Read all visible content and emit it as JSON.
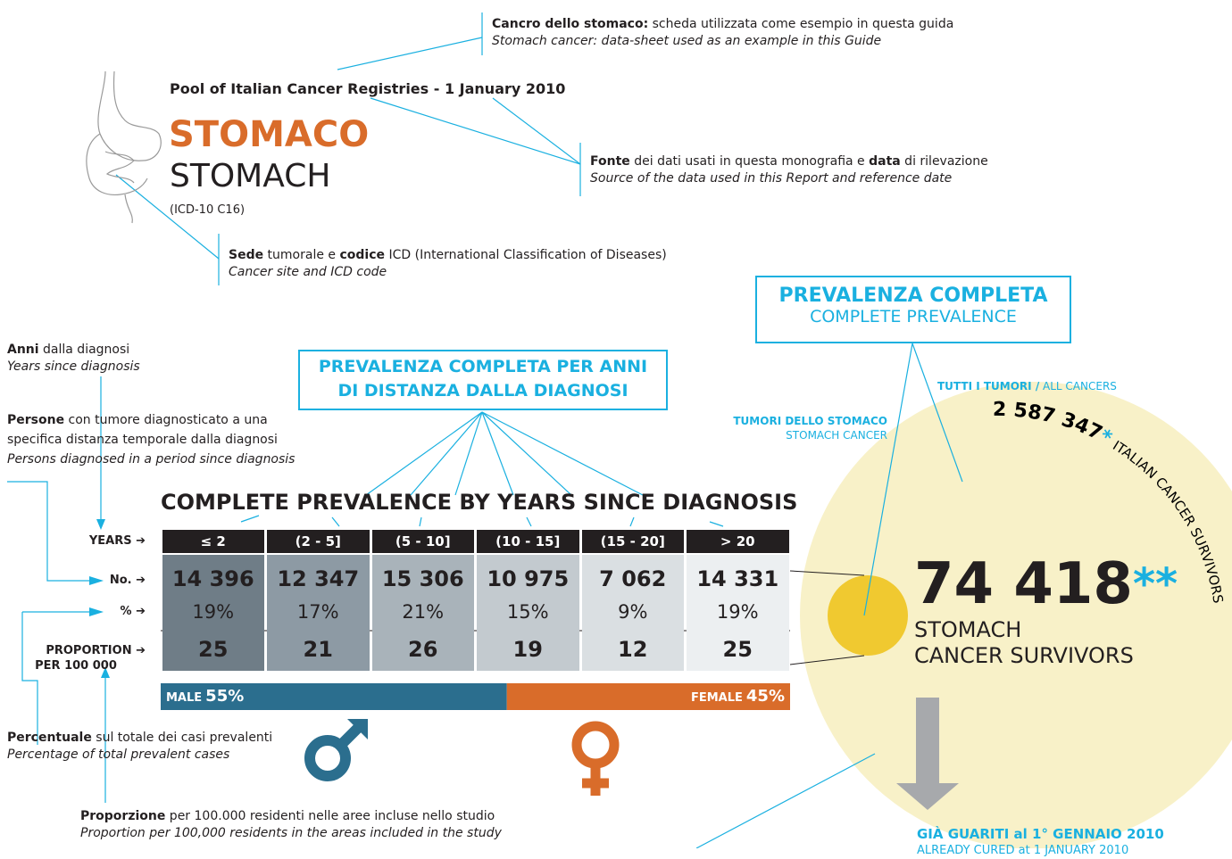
{
  "callouts": {
    "example": {
      "bold": "Cancro dello stomaco:",
      "text": " scheda utilizzata come esempio in questa guida",
      "english": "Stomach cancer: data-sheet used as an example in this Guide"
    },
    "source": {
      "bold1": "Fonte",
      "text1": " dei dati usati in questa monografia e ",
      "bold2": "data",
      "text2": " di rilevazione",
      "english": "Source of the data used in this Report and reference date"
    },
    "site": {
      "bold1": "Sede",
      "text1": " tumorale e ",
      "bold2": "codice",
      "text2": " ICD (International Classification of Diseases)",
      "english": "Cancer site and ICD code"
    },
    "years": {
      "bold": "Anni",
      "text": " dalla diagnosi",
      "english": "Years since diagnosis"
    },
    "persons": {
      "bold": "Persone",
      "text": " con tumore diagnosticato a una specifica distanza temporale dalla diagnosi",
      "english": "Persons diagnosed in a period since diagnosis"
    },
    "percent": {
      "bold": "Percentuale",
      "text": " sul totale dei casi prevalenti",
      "english": "Percentage of total prevalent cases"
    },
    "proportion": {
      "bold": "Proporzione",
      "text": " per 100.000 residenti nelle aree incluse nello studio",
      "english": "Proportion per 100,000 residents in the areas included in the study"
    }
  },
  "sheet": {
    "source": "Pool of Italian Cancer Registries - 1 January 2010",
    "site_it": "STOMACO",
    "site_en": "STOMACH",
    "icd": "(ICD-10 C16)"
  },
  "boxes": {
    "complete": {
      "it": "PREVALENZA COMPLETA",
      "en": "COMPLETE PREVALENCE"
    },
    "by_years": {
      "line1": "PREVALENZA COMPLETA PER ANNI",
      "line2": "DI DISTANZA DALLA DIAGNOSI"
    }
  },
  "table": {
    "title": "COMPLETE PREVALENCE BY YEARS SINCE DIAGNOSIS",
    "row_labels": [
      "YEARS ➔",
      "No. ➔",
      "% ➔"
    ],
    "proportion_label": [
      "PROPORTION ➔",
      "PER 100 000"
    ],
    "columns": [
      "≤ 2",
      "(2 - 5]",
      "(5 - 10]",
      "(10 - 15]",
      "(15 - 20]",
      "> 20"
    ],
    "counts": [
      "14 396",
      "12 347",
      "15 306",
      "10 975",
      "7 062",
      "14 331"
    ],
    "percents": [
      "19%",
      "17%",
      "21%",
      "15%",
      "9%",
      "19%"
    ],
    "proportions": [
      25,
      21,
      26,
      19,
      12,
      25
    ]
  },
  "sex": {
    "male": {
      "label": "MALE",
      "value": 55,
      "value_label": "55%"
    },
    "female": {
      "label": "FEMALE",
      "value": 45,
      "value_label": "45%"
    }
  },
  "prevalence": {
    "all_label_it": "TUTTI I TUMORI /",
    "all_label_en": "ALL CANCERS",
    "all_count": "2 587 347",
    "all_mark": "*",
    "all_caption": "ITALIAN CANCER SURVIVORS",
    "stomach_label_it": "TUMORI DELLO STOMACO",
    "stomach_label_en": "STOMACH CANCER",
    "count": "74 418",
    "mark": "**",
    "caption1": "STOMACH",
    "caption2": "CANCER SURVIVORS"
  },
  "cured": {
    "it": "GIÀ GUARITI al 1° GENNAIO 2010",
    "en": "ALREADY CURED at 1 JANUARY 2010"
  }
}
